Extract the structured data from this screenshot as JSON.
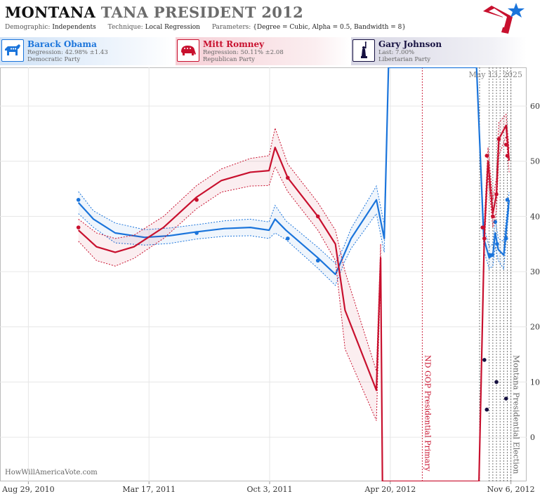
{
  "header": {
    "state": "MONTANA",
    "race": "TANA PRESIDENT 2012",
    "demographic_label": "Demographic:",
    "demographic": "Independents",
    "technique_label": "Technique:",
    "technique": "Local Regression",
    "parameters_label": "Parameters:",
    "parameters": "{Degree = Cubic, Alpha = 0.5, Bandwidth = 8}"
  },
  "candidates": [
    {
      "name": "Barack Obama",
      "line1": "Regression: 42.98% ±1.43",
      "line2": "Democratic Party",
      "color": "#1a74db",
      "icon": "donkey-icon"
    },
    {
      "name": "Mitt Romney",
      "line1": "Regression: 50.11% ±2.08",
      "line2": "Republican Party",
      "color": "#c8102e",
      "icon": "elephant-icon"
    },
    {
      "name": "Gary Johnson",
      "line1": "Last: 7.00%",
      "line2": "Libertarian Party",
      "color": "#151040",
      "icon": "liberty-icon"
    }
  ],
  "credit": "HowWillAmericaVote.com",
  "chart_data": {
    "type": "line",
    "date_stamp": "May 13, 2025",
    "x_ticks": [
      "Aug 29, 2010",
      "Mar 17, 2011",
      "Oct 3, 2011",
      "Apr 20, 2012",
      "Nov 6, 2012"
    ],
    "y_ticks": [
      0,
      10,
      20,
      30,
      40,
      50,
      60
    ],
    "ylim": [
      -8,
      67
    ],
    "xlim": [
      "2010-07-13",
      "2012-12-02"
    ],
    "grid": true,
    "annotations": [
      {
        "label": "ND GOP Presidential Primary",
        "date": "2012-06-12",
        "color": "#c8102e"
      },
      {
        "label": "Montana Presidential Election",
        "date": "2012-11-06",
        "color": "#666666"
      }
    ],
    "extra_vlines": [
      "2012-09-15",
      "2012-10-01",
      "2012-10-07",
      "2012-10-13",
      "2012-10-19",
      "2012-10-25",
      "2012-10-31"
    ],
    "series": [
      {
        "name": "Barack Obama",
        "color": "#1a74db",
        "points": [
          [
            "2010-11-20",
            43
          ],
          [
            "2011-06-04",
            37
          ],
          [
            "2011-11-02",
            36
          ],
          [
            "2011-12-22",
            32
          ],
          [
            "2012-09-20",
            38
          ],
          [
            "2012-10-02",
            33
          ],
          [
            "2012-10-06",
            33
          ],
          [
            "2012-10-11",
            39
          ],
          [
            "2012-10-14",
            35
          ],
          [
            "2012-10-29",
            36
          ],
          [
            "2012-10-31",
            43
          ]
        ],
        "fit": [
          [
            "2010-11-20",
            42.5
          ],
          [
            "2010-12-15",
            39.5
          ],
          [
            "2011-01-20",
            37
          ],
          [
            "2011-03-10",
            36.2
          ],
          [
            "2011-04-20",
            36.5
          ],
          [
            "2011-06-04",
            37.2
          ],
          [
            "2011-07-20",
            37.8
          ],
          [
            "2011-09-01",
            38
          ],
          [
            "2011-10-02",
            37.5
          ],
          [
            "2011-10-12",
            39.5
          ],
          [
            "2011-10-30",
            37.5
          ],
          [
            "2011-12-22",
            32.5
          ],
          [
            "2012-01-20",
            29.5
          ],
          [
            "2012-02-03",
            33
          ],
          [
            "2012-02-15",
            36
          ],
          [
            "2012-03-28",
            43
          ],
          [
            "2012-04-10",
            36
          ],
          [
            "2012-04-17",
            67
          ],
          [
            "2012-09-10",
            67
          ],
          [
            "2012-09-22",
            36
          ],
          [
            "2012-10-01",
            32.5
          ],
          [
            "2012-10-07",
            33
          ],
          [
            "2012-10-11",
            37
          ],
          [
            "2012-10-16",
            34
          ],
          [
            "2012-10-25",
            33
          ],
          [
            "2012-11-03",
            42.98
          ]
        ],
        "band_upper": [
          44.5,
          41,
          38.8,
          37.6,
          37.9,
          38.5,
          39.2,
          39.5,
          39,
          42,
          39.2,
          34.4,
          31.5,
          34.5,
          37.8,
          45.5,
          38.5,
          67,
          67,
          38.2,
          34.5,
          35,
          39.5,
          36,
          35.5,
          44.4
        ],
        "band_lower": [
          40.5,
          38,
          35.2,
          34.8,
          35.1,
          35.9,
          36.4,
          36.5,
          36,
          37,
          35.8,
          30.6,
          27.5,
          31.5,
          34.2,
          40.5,
          33.5,
          67,
          67,
          33.8,
          30.5,
          31,
          34.5,
          32,
          30.5,
          41.6
        ]
      },
      {
        "name": "Mitt Romney",
        "color": "#c8102e",
        "points": [
          [
            "2010-11-20",
            38
          ],
          [
            "2011-06-04",
            43
          ],
          [
            "2011-11-02",
            47
          ],
          [
            "2011-12-22",
            40
          ],
          [
            "2012-09-20",
            38
          ],
          [
            "2012-09-23",
            36
          ],
          [
            "2012-09-27",
            51
          ],
          [
            "2012-10-07",
            40
          ],
          [
            "2012-10-13",
            44
          ],
          [
            "2012-10-17",
            54
          ],
          [
            "2012-10-29",
            53
          ],
          [
            "2012-10-31",
            51
          ]
        ],
        "fit": [
          [
            "2010-11-20",
            37.5
          ],
          [
            "2010-12-20",
            34.5
          ],
          [
            "2011-01-20",
            33.5
          ],
          [
            "2011-02-20",
            34.5
          ],
          [
            "2011-04-10",
            38
          ],
          [
            "2011-06-04",
            43.5
          ],
          [
            "2011-07-15",
            46.5
          ],
          [
            "2011-09-01",
            48
          ],
          [
            "2011-10-02",
            48.3
          ],
          [
            "2011-10-12",
            52.5
          ],
          [
            "2011-11-02",
            47
          ],
          [
            "2011-12-22",
            40
          ],
          [
            "2012-01-20",
            35
          ],
          [
            "2012-02-05",
            23
          ],
          [
            "2012-03-28",
            8.5
          ],
          [
            "2012-04-04",
            32.5
          ],
          [
            "2012-04-07",
            -8
          ],
          [
            "2012-09-14",
            -8
          ],
          [
            "2012-09-23",
            37
          ],
          [
            "2012-09-29",
            50
          ],
          [
            "2012-10-07",
            40.5
          ],
          [
            "2012-10-13",
            44
          ],
          [
            "2012-10-17",
            54
          ],
          [
            "2012-10-29",
            56.5
          ],
          [
            "2012-11-03",
            50.11
          ]
        ],
        "band_upper": [
          39.5,
          37,
          36,
          36.6,
          40,
          45.6,
          48.6,
          50.5,
          51,
          56,
          49.5,
          42.5,
          37.5,
          30,
          12,
          35,
          -8,
          -8,
          39.5,
          52.5,
          43,
          47,
          57,
          58.5,
          52.2
        ],
        "band_lower": [
          35.5,
          32,
          31,
          32.4,
          36,
          41.4,
          44.4,
          45.5,
          45.6,
          49,
          44.5,
          37.5,
          32,
          16,
          3,
          30,
          -8,
          -8,
          34.5,
          47.5,
          38,
          41,
          51,
          54.5,
          48
        ]
      },
      {
        "name": "Gary Johnson",
        "color": "#151040",
        "points": [
          [
            "2012-09-23",
            14
          ],
          [
            "2012-09-27",
            5
          ],
          [
            "2012-10-13",
            10
          ],
          [
            "2012-10-29",
            7
          ]
        ]
      }
    ]
  }
}
